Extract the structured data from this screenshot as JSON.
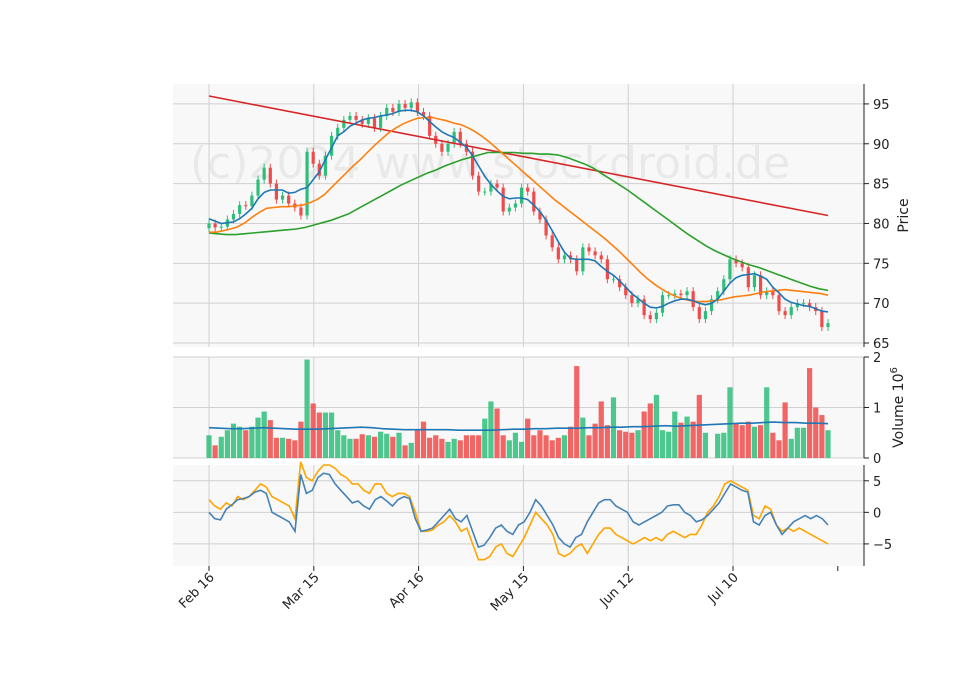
{
  "chart_data": {
    "type": "candlestick",
    "watermark": "(c)2024 www.stockdroid.de",
    "date_ticks": [
      "Feb 16",
      "Mar 15",
      "Apr 16",
      "May 15",
      "Jun 12",
      "Jul 10"
    ],
    "colors": {
      "up": "#2fbe7a",
      "down": "#f04b4b",
      "ma_short": "#1f77b4",
      "ma_mid": "#ff7f0e",
      "ma_long": "#2ca02c",
      "ma_200": "#d62728",
      "vol_avg": "#1f77b4",
      "osc_1": "#4682b4",
      "osc_2": "#ffa500",
      "panel_bg": "#f8f8f8",
      "grid": "#d0d0d0"
    },
    "price_panel": {
      "ylabel": "Price",
      "ylim": [
        64.5,
        97.5
      ],
      "yticks": [
        65,
        70,
        75,
        80,
        85,
        90,
        95
      ],
      "close": [
        80.0,
        79.5,
        79.6,
        80.5,
        81.2,
        82.3,
        82.2,
        83.5,
        85.5,
        87.0,
        85.0,
        83.0,
        83.5,
        82.5,
        82.0,
        81.0,
        89.0,
        87.5,
        86.0,
        88.5,
        91.0,
        92.0,
        93.0,
        93.5,
        93.0,
        92.5,
        93.2,
        92.0,
        93.5,
        94.5,
        94.0,
        95.0,
        94.5,
        95.2,
        94.0,
        93.5,
        91.0,
        90.0,
        89.0,
        90.0,
        91.5,
        90.0,
        89.0,
        86.0,
        84.0,
        84.0,
        85.0,
        84.5,
        81.5,
        82.0,
        82.5,
        84.5,
        84.0,
        81.5,
        80.5,
        78.5,
        77.0,
        75.5,
        76.0,
        75.5,
        74.0,
        77.0,
        76.5,
        76.0,
        75.5,
        73.0,
        73.0,
        72.0,
        71.0,
        70.0,
        70.5,
        68.5,
        68.0,
        68.8,
        71.0,
        71.0,
        71.2,
        71.0,
        71.5,
        69.5,
        68.0,
        69.0,
        70.5,
        71.5,
        73.0,
        75.5,
        75.0,
        74.5,
        72.0,
        73.5,
        71.0,
        71.5,
        71.0,
        69.0,
        68.5,
        69.5,
        70.0,
        70.0,
        69.5,
        69.0,
        67.0,
        67.5
      ],
      "ma_short": [
        80.6,
        80.3,
        80.0,
        80.1,
        80.2,
        80.6,
        81.2,
        81.9,
        83.1,
        83.9,
        84.2,
        84.2,
        84.2,
        83.8,
        83.9,
        84.3,
        84.5,
        85.5,
        86.5,
        88.0,
        89.5,
        91.0,
        91.5,
        92.2,
        92.6,
        93.0,
        93.2,
        93.3,
        93.5,
        93.6,
        93.8,
        94.1,
        94.2,
        94.2,
        94.0,
        93.5,
        92.8,
        92.1,
        91.5,
        91.1,
        90.8,
        90.2,
        89.6,
        88.5,
        87.2,
        85.9,
        84.9,
        84.1,
        83.4,
        83.1,
        83.2,
        83.2,
        83.0,
        82.3,
        81.5,
        80.4,
        79.1,
        77.7,
        76.4,
        75.6,
        75.5,
        75.5,
        75.5,
        75.3,
        74.6,
        74.0,
        73.5,
        72.8,
        72.0,
        71.2,
        70.6,
        70.0,
        69.5,
        69.4,
        69.6,
        70.0,
        70.3,
        70.5,
        70.5,
        70.3,
        70.0,
        69.8,
        70.0,
        70.5,
        71.5,
        72.5,
        73.2,
        73.5,
        73.6,
        73.7,
        73.4,
        73.0,
        72.0,
        71.3,
        70.5,
        70.1,
        69.9,
        69.7,
        69.6,
        69.3,
        69.0,
        68.9
      ],
      "ma_mid": [
        78.9,
        78.9,
        79.1,
        79.3,
        79.6,
        80.1,
        80.8,
        81.4,
        81.9,
        82.0,
        82.1,
        82.1,
        82.2,
        82.3,
        82.6,
        83.0,
        83.6,
        84.5,
        85.4,
        86.3,
        87.2,
        88.0,
        88.9,
        89.8,
        90.6,
        91.4,
        92.0,
        92.5,
        92.9,
        93.2,
        93.3,
        93.3,
        93.1,
        92.9,
        92.6,
        92.4,
        92.0,
        91.5,
        90.9,
        90.2,
        89.4,
        88.6,
        87.8,
        87.0,
        86.2,
        85.4,
        84.6,
        83.8,
        83.0,
        82.3,
        81.6,
        80.9,
        80.2,
        79.5,
        78.8,
        78.1,
        77.3,
        76.5,
        75.6,
        74.7,
        73.8,
        73.0,
        72.3,
        71.7,
        71.2,
        70.8,
        70.5,
        70.3,
        70.2,
        70.2,
        70.3,
        70.4,
        70.6,
        70.8,
        70.9,
        71.0,
        71.2,
        71.4,
        71.5,
        71.6,
        71.7,
        71.6,
        71.5,
        71.4,
        71.3,
        71.2,
        71.0
      ],
      "ma_long": [
        78.8,
        78.7,
        78.6,
        78.6,
        78.7,
        78.8,
        78.9,
        79.0,
        79.1,
        79.2,
        79.3,
        79.5,
        79.8,
        80.1,
        80.4,
        80.8,
        81.2,
        81.8,
        82.4,
        83.0,
        83.6,
        84.2,
        84.8,
        85.3,
        85.8,
        86.3,
        86.7,
        87.2,
        87.6,
        88.0,
        88.3,
        88.6,
        88.9,
        88.9,
        88.9,
        88.9,
        88.8,
        88.8,
        88.7,
        88.7,
        88.6,
        88.3,
        87.9,
        87.5,
        87.0,
        86.3,
        85.6,
        84.9,
        84.2,
        83.4,
        82.6,
        81.8,
        81.0,
        80.2,
        79.4,
        78.6,
        77.9,
        77.2,
        76.6,
        76.1,
        75.6,
        75.2,
        74.8,
        74.5,
        74.1,
        73.7,
        73.3,
        72.9,
        72.5,
        72.1,
        71.8,
        71.6
      ],
      "ma_200": [
        96.0,
        81.0
      ]
    },
    "volume_panel": {
      "ylabel": "Volume  10^6",
      "ylim": [
        0,
        2.0
      ],
      "yticks": [
        0,
        1,
        2
      ],
      "volume": [
        0.45,
        0.25,
        0.42,
        0.55,
        0.68,
        0.62,
        0.55,
        0.62,
        0.8,
        0.92,
        0.75,
        0.4,
        0.4,
        0.38,
        0.35,
        0.72,
        1.95,
        1.08,
        0.9,
        0.9,
        0.9,
        0.55,
        0.45,
        0.38,
        0.38,
        0.47,
        0.45,
        0.42,
        0.52,
        0.48,
        0.42,
        0.5,
        0.25,
        0.3,
        0.55,
        0.72,
        0.4,
        0.45,
        0.38,
        0.32,
        0.38,
        0.35,
        0.45,
        0.45,
        0.45,
        0.78,
        1.12,
        0.98,
        0.45,
        0.35,
        0.5,
        0.32,
        0.78,
        0.45,
        0.55,
        0.45,
        0.35,
        0.4,
        0.45,
        0.62,
        1.82,
        0.8,
        0.45,
        0.68,
        1.12,
        0.65,
        1.2,
        0.55,
        0.52,
        0.5,
        0.55,
        0.92,
        1.08,
        1.25,
        0.55,
        0.52,
        0.92,
        0.7,
        0.82,
        0.72,
        1.25,
        0.5,
        0.0,
        0.48,
        0.5,
        1.4,
        0.68,
        0.65,
        0.72,
        0.62,
        0.65,
        1.4,
        0.5,
        0.35,
        1.1,
        0.38,
        0.6,
        0.6,
        1.78,
        1.0,
        0.85,
        0.55
      ],
      "vol_avg": [
        0.6,
        0.59,
        0.58,
        0.58,
        0.59,
        0.6,
        0.59,
        0.58,
        0.57,
        0.57,
        0.57,
        0.58,
        0.59,
        0.6,
        0.61,
        0.6,
        0.58,
        0.57,
        0.56,
        0.56,
        0.56,
        0.56,
        0.56,
        0.55,
        0.55,
        0.55,
        0.55,
        0.56,
        0.57,
        0.57,
        0.58,
        0.58,
        0.59,
        0.59,
        0.59,
        0.6,
        0.6,
        0.61,
        0.61,
        0.62,
        0.62,
        0.63,
        0.64,
        0.63,
        0.64,
        0.65,
        0.66,
        0.67,
        0.68,
        0.69,
        0.69,
        0.7,
        0.71,
        0.7,
        0.7,
        0.69,
        0.69,
        0.68
      ]
    },
    "oscillator_panel": {
      "ylim": [
        -8.5,
        7.5
      ],
      "yticks": [
        -5,
        0,
        5
      ],
      "line_1": [
        0.0,
        -1.0,
        -1.2,
        0.5,
        1.2,
        2.0,
        2.2,
        2.5,
        3.2,
        3.5,
        3.0,
        0.0,
        -0.5,
        -1.0,
        -1.5,
        -3.0,
        6.0,
        3.0,
        3.5,
        5.5,
        6.2,
        6.0,
        4.5,
        3.5,
        2.5,
        1.5,
        1.8,
        1.0,
        0.5,
        2.0,
        2.5,
        1.8,
        1.0,
        2.0,
        2.5,
        2.2,
        -1.0,
        -3.0,
        -2.8,
        -2.5,
        -1.5,
        -0.5,
        0.5,
        -1.0,
        -1.5,
        -0.5,
        -3.0,
        -5.5,
        -5.2,
        -4.0,
        -2.5,
        -2.0,
        -3.0,
        -3.5,
        -2.0,
        -1.5,
        0.0,
        2.0,
        1.0,
        -0.5,
        -2.0,
        -4.0,
        -5.0,
        -5.5,
        -4.0,
        -3.5,
        -1.5,
        0.0,
        1.5,
        2.0,
        2.0,
        1.0,
        0.5,
        0.0,
        -1.5,
        -2.0,
        -1.5,
        -1.0,
        -0.5,
        0.0,
        1.0,
        1.2,
        1.2,
        0.0,
        -0.5,
        -1.5,
        -1.2,
        -0.5,
        0.5,
        1.5,
        3.0,
        4.5,
        4.0,
        3.5,
        3.2,
        -1.5,
        -2.0,
        -0.5,
        0.0,
        -2.0,
        -3.5,
        -2.5,
        -1.5,
        -1.0,
        -0.5,
        -1.0,
        -0.5,
        -1.0,
        -2.0
      ],
      "line_2": [
        2.0,
        1.0,
        0.5,
        1.5,
        1.0,
        2.5,
        2.0,
        2.5,
        3.5,
        4.5,
        4.0,
        2.5,
        2.0,
        1.5,
        1.0,
        -1.0,
        8.0,
        5.5,
        5.0,
        6.5,
        7.5,
        7.5,
        7.0,
        6.0,
        5.5,
        4.5,
        4.5,
        3.5,
        3.0,
        4.5,
        4.5,
        3.0,
        2.5,
        3.0,
        3.0,
        2.5,
        0.0,
        -3.0,
        -3.0,
        -2.8,
        -2.0,
        -1.5,
        -0.5,
        -1.5,
        -3.0,
        -2.5,
        -5.0,
        -7.5,
        -7.5,
        -7.0,
        -5.5,
        -5.0,
        -6.5,
        -7.0,
        -5.5,
        -4.0,
        -2.0,
        0.0,
        -1.0,
        -2.0,
        -3.5,
        -6.5,
        -7.0,
        -6.5,
        -5.5,
        -5.0,
        -6.5,
        -5.0,
        -3.5,
        -2.5,
        -2.5,
        -3.5,
        -4.0,
        -4.5,
        -5.0,
        -4.5,
        -4.0,
        -4.5,
        -4.0,
        -4.5,
        -3.5,
        -3.0,
        -3.5,
        -4.0,
        -3.5,
        -3.5,
        -2.0,
        0.0,
        1.0,
        2.5,
        4.5,
        5.0,
        4.5,
        4.0,
        3.5,
        -0.5,
        -1.0,
        1.0,
        0.5,
        -2.0,
        -3.0,
        -2.5,
        -3.0,
        -2.5,
        -3.0,
        -3.5,
        -4.0,
        -4.5,
        -5.0
      ]
    }
  }
}
